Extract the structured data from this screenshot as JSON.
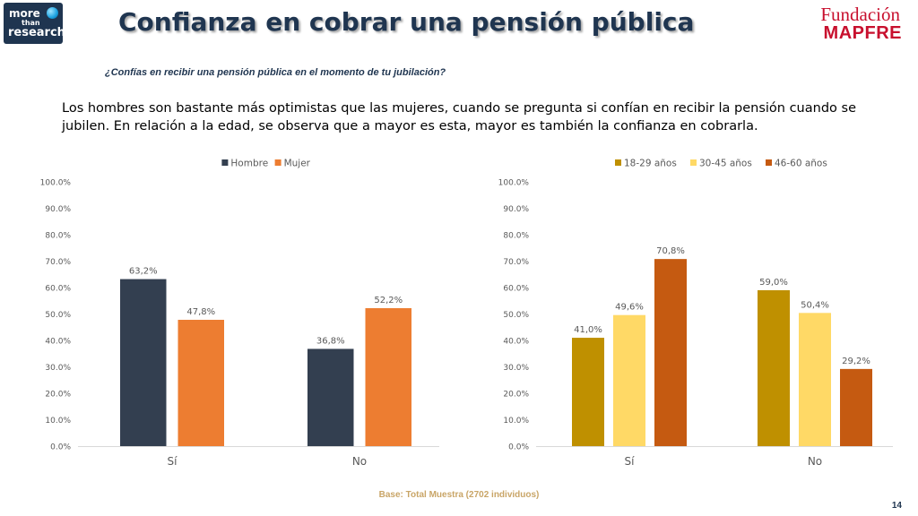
{
  "header": {
    "logo_left": {
      "line1": "more",
      "line2": "than",
      "line3": "research"
    },
    "title": "Confianza en cobrar una pensión pública",
    "logo_right": {
      "line1": "Fundación",
      "line2": "MAPFRE"
    }
  },
  "question": "¿Confías en recibir una pensión pública en el momento de tu jubilación?",
  "paragraph": "Los hombres son bastante más optimistas que las mujeres, cuando se pregunta si confían en recibir la pensión cuando se jubilen. En relación a la edad, se observa que a mayor es esta, mayor es también la confianza en cobrarla.",
  "footer": {
    "base": "Base: Total Muestra (2702 individuos)",
    "page": "14"
  },
  "chart_data": [
    {
      "type": "bar",
      "categories": [
        "Sí",
        "No"
      ],
      "series": [
        {
          "name": "Hombre",
          "color": "#333f50",
          "values": [
            63.2,
            36.8
          ],
          "labels": [
            "63,2%",
            "36,8%"
          ]
        },
        {
          "name": "Mujer",
          "color": "#ed7d31",
          "values": [
            47.8,
            52.2
          ],
          "labels": [
            "47,8%",
            "52,2%"
          ]
        }
      ],
      "ylim": [
        0,
        100
      ],
      "yticks": [
        0,
        10,
        20,
        30,
        40,
        50,
        60,
        70,
        80,
        90,
        100
      ],
      "ytick_labels": [
        "0.0%",
        "10.0%",
        "20.0%",
        "30.0%",
        "40.0%",
        "50.0%",
        "60.0%",
        "70.0%",
        "80.0%",
        "90.0%",
        "100.0%"
      ],
      "legend": "top-center",
      "grid": false
    },
    {
      "type": "bar",
      "categories": [
        "Sí",
        "No"
      ],
      "series": [
        {
          "name": "18-29 años",
          "color": "#bf9000",
          "values": [
            41.0,
            59.0
          ],
          "labels": [
            "41,0%",
            "59,0%"
          ]
        },
        {
          "name": "30-45 años",
          "color": "#ffd966",
          "values": [
            49.6,
            50.4
          ],
          "labels": [
            "49,6%",
            "50,4%"
          ]
        },
        {
          "name": "46-60 años",
          "color": "#c55a11",
          "values": [
            70.8,
            29.2
          ],
          "labels": [
            "70,8%",
            "29,2%"
          ]
        }
      ],
      "ylim": [
        0,
        100
      ],
      "yticks": [
        0,
        10,
        20,
        30,
        40,
        50,
        60,
        70,
        80,
        90,
        100
      ],
      "ytick_labels": [
        "0.0%",
        "10.0%",
        "20.0%",
        "30.0%",
        "40.0%",
        "50.0%",
        "60.0%",
        "70.0%",
        "80.0%",
        "90.0%",
        "100.0%"
      ],
      "legend": "top-center",
      "grid": false
    }
  ]
}
